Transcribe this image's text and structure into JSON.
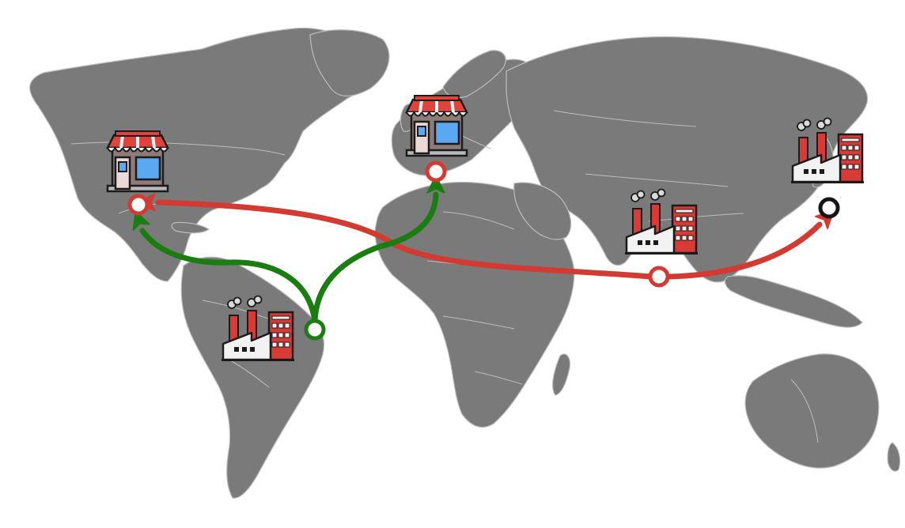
{
  "colors": {
    "background": "#ffffff",
    "land": "#7a7a7a",
    "border": "#bdbdbd",
    "route_red": "#d23a32",
    "route_green": "#1a7d10",
    "node_black": "#151515",
    "awning_red": "#e0423d",
    "shop_wall": "#8d7b78",
    "window_blue": "#5aa8f0",
    "factory_red": "#d83a36",
    "smoke": "#dadada",
    "outline": "#1b1b1b"
  },
  "icons": {
    "store": "store-icon",
    "factory": "factory-icon",
    "node": "location-node-icon",
    "arrow": "arrow-head-icon"
  },
  "locations": [
    {
      "id": "north-america",
      "kind": "store",
      "node_color": "route_red"
    },
    {
      "id": "europe",
      "kind": "store",
      "node_color": "route_red"
    },
    {
      "id": "south-america",
      "kind": "factory",
      "node_color": "route_green"
    },
    {
      "id": "south-asia",
      "kind": "factory",
      "node_color": "route_red"
    },
    {
      "id": "east-asia",
      "kind": "factory",
      "node_color": "node_black"
    }
  ],
  "routes": [
    {
      "id": "south-asia-to-north-america",
      "from": "south-asia",
      "to": "north-america",
      "color": "route_red"
    },
    {
      "id": "south-asia-to-east-asia",
      "from": "south-asia",
      "to": "east-asia",
      "color": "route_red"
    },
    {
      "id": "south-america-to-north-america",
      "from": "south-america",
      "to": "north-america",
      "color": "route_green"
    },
    {
      "id": "south-america-to-europe",
      "from": "south-america",
      "to": "europe",
      "color": "route_green"
    }
  ]
}
